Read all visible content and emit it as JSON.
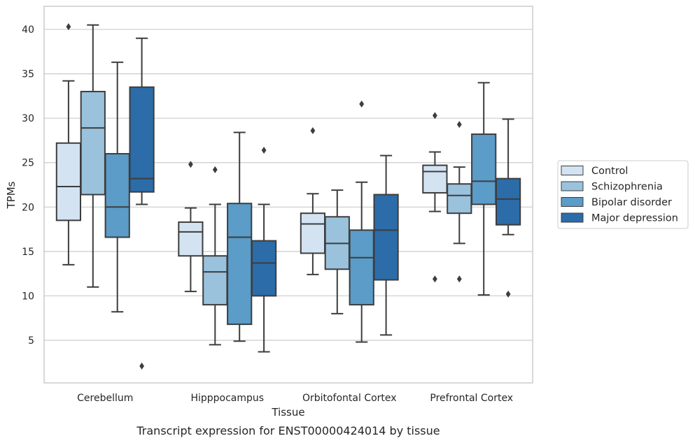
{
  "chart_data": {
    "type": "box",
    "xlabel": "Tissue",
    "ylabel": "TPMs",
    "caption": "Transcript expression for ENST00000424014 by tissue",
    "ylim": [
      0.2,
      42.6
    ],
    "yticks": [
      5,
      10,
      15,
      20,
      25,
      30,
      35,
      40
    ],
    "grid": "horizontal",
    "legend_position": "right",
    "categories": [
      "Cerebellum",
      "Hipppocampus",
      "Orbitofontal Cortex",
      "Prefrontal Cortex"
    ],
    "series": [
      {
        "name": "Control",
        "color": "#d3e3f2",
        "boxes": [
          {
            "whislo": 13.5,
            "q1": 18.5,
            "med": 22.3,
            "q3": 27.2,
            "whishi": 34.2,
            "fliers": [
              40.3
            ]
          },
          {
            "whislo": 10.5,
            "q1": 14.5,
            "med": 17.2,
            "q3": 18.3,
            "whishi": 19.9,
            "fliers": [
              24.8
            ]
          },
          {
            "whislo": 12.4,
            "q1": 14.8,
            "med": 18.1,
            "q3": 19.3,
            "whishi": 21.5,
            "fliers": [
              28.6
            ]
          },
          {
            "whislo": 19.5,
            "q1": 21.6,
            "med": 24.0,
            "q3": 24.7,
            "whishi": 26.2,
            "fliers": [
              30.3,
              11.9
            ]
          }
        ]
      },
      {
        "name": "Schizophrenia",
        "color": "#9ac2dc",
        "boxes": [
          {
            "whislo": 11.0,
            "q1": 21.4,
            "med": 28.9,
            "q3": 33.0,
            "whishi": 40.5,
            "fliers": []
          },
          {
            "whislo": 4.5,
            "q1": 9.0,
            "med": 12.7,
            "q3": 14.5,
            "whishi": 20.3,
            "fliers": [
              24.2
            ]
          },
          {
            "whislo": 8.0,
            "q1": 13.0,
            "med": 15.9,
            "q3": 18.9,
            "whishi": 21.9,
            "fliers": []
          },
          {
            "whislo": 15.9,
            "q1": 19.3,
            "med": 21.3,
            "q3": 22.6,
            "whishi": 24.5,
            "fliers": [
              29.3,
              11.9
            ]
          }
        ]
      },
      {
        "name": "Bipolar disorder",
        "color": "#5b9cc8",
        "boxes": [
          {
            "whislo": 8.2,
            "q1": 16.6,
            "med": 20.0,
            "q3": 26.0,
            "whishi": 36.3,
            "fliers": []
          },
          {
            "whislo": 4.9,
            "q1": 6.8,
            "med": 16.6,
            "q3": 20.4,
            "whishi": 28.4,
            "fliers": []
          },
          {
            "whislo": 4.8,
            "q1": 9.0,
            "med": 14.3,
            "q3": 17.4,
            "whishi": 22.8,
            "fliers": [
              31.6
            ]
          },
          {
            "whislo": 10.1,
            "q1": 20.3,
            "med": 22.9,
            "q3": 28.2,
            "whishi": 34.0,
            "fliers": []
          }
        ]
      },
      {
        "name": "Major depression",
        "color": "#2b6ca9",
        "boxes": [
          {
            "whislo": 20.3,
            "q1": 21.7,
            "med": 23.2,
            "q3": 33.5,
            "whishi": 39.0,
            "fliers": [
              2.1
            ]
          },
          {
            "whislo": 3.7,
            "q1": 10.0,
            "med": 13.7,
            "q3": 16.2,
            "whishi": 20.3,
            "fliers": [
              26.4
            ]
          },
          {
            "whislo": 5.6,
            "q1": 11.8,
            "med": 17.4,
            "q3": 21.4,
            "whishi": 25.8,
            "fliers": []
          },
          {
            "whislo": 16.9,
            "q1": 18.0,
            "med": 20.9,
            "q3": 23.2,
            "whishi": 29.9,
            "fliers": [
              10.2
            ]
          }
        ]
      }
    ]
  }
}
